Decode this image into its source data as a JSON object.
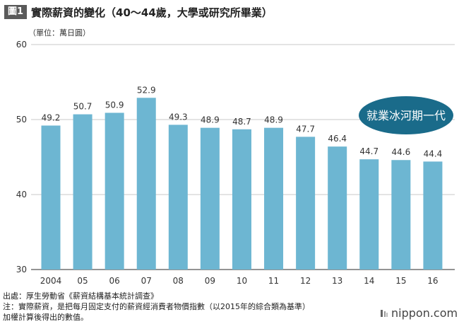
{
  "figure": {
    "badge": "圖1",
    "title": "實際薪資的變化（40～44歲，大學或研究所畢業）",
    "unit": "（單位：萬日圓）"
  },
  "chart_data": {
    "type": "bar",
    "categories": [
      "2004",
      "05",
      "06",
      "07",
      "08",
      "09",
      "10",
      "11",
      "12",
      "13",
      "14",
      "15",
      "16"
    ],
    "values": [
      49.2,
      50.7,
      50.9,
      52.9,
      49.3,
      48.9,
      48.7,
      48.9,
      47.7,
      46.4,
      44.7,
      44.6,
      44.4
    ],
    "value_labels": [
      "49.2",
      "50.7",
      "50.9",
      "52.9",
      "49.3",
      "48.9",
      "48.7",
      "48.9",
      "47.7",
      "46.4",
      "44.7",
      "44.6",
      "44.4"
    ],
    "ylim": [
      30,
      60
    ],
    "yticks": [
      "30",
      "40",
      "50",
      "60"
    ],
    "grid": true,
    "bar_color": "#6db6d2",
    "annotation": "就業冰河期一代",
    "annotation_color": "#1a6b8a"
  },
  "notes": {
    "source": "出處：厚生勞動省《薪資結構基本統計調查》",
    "note1": "注：實際薪資，是把每月固定支付的薪資經消費者物價指數（以2015年的綜合類為基準）",
    "note2": "加權計算後得出的數值。"
  },
  "brand": {
    "name": "nippon.com",
    "icon": "nippon-logo-icon"
  }
}
